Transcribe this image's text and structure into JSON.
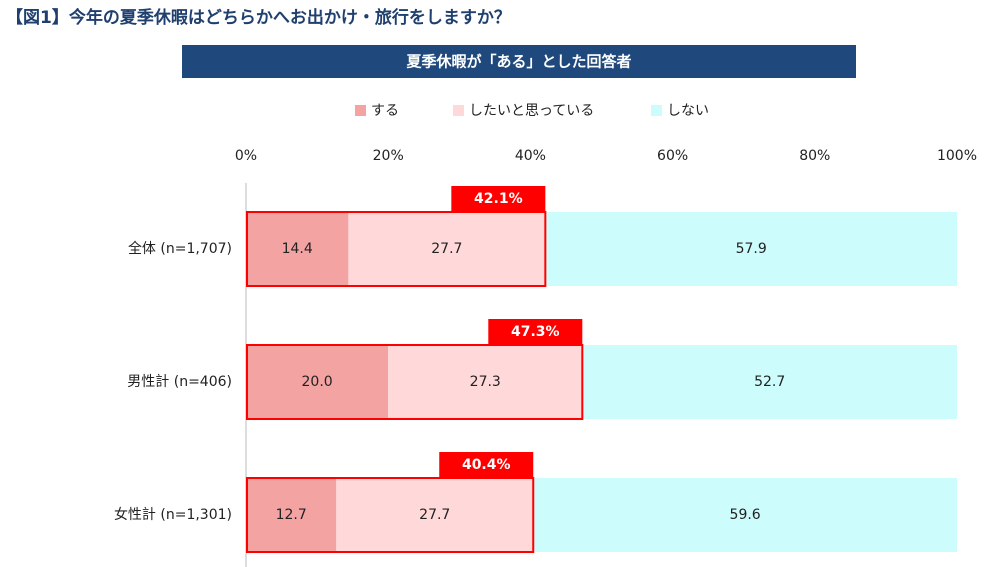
{
  "chart_data": {
    "type": "stacked-barh",
    "title": "【図1】今年の夏季休暇はどちらかへお出かけ・旅行をしますか？",
    "subtitle": "夏季休暇が「ある」とした回答者",
    "categories": [
      "全体 (n=1,707)",
      "男性計 (n=406)",
      "女性計 (n=1,301)"
    ],
    "series": [
      {
        "name": "する",
        "color": "#f4a3a3",
        "values": [
          14.4,
          20.0,
          12.7
        ],
        "value_labels": [
          "14.4",
          "20.0",
          "12.7"
        ]
      },
      {
        "name": "したいと思っている",
        "color": "#ffd9d9",
        "values": [
          27.7,
          27.3,
          27.7
        ],
        "value_labels": [
          "27.7",
          "27.3",
          "27.7"
        ]
      },
      {
        "name": "しない",
        "color": "#ccfcfc",
        "values": [
          57.9,
          52.7,
          59.6
        ],
        "value_labels": [
          "57.9",
          "52.7",
          "59.6"
        ]
      }
    ],
    "totals": {
      "color": "#ff0000",
      "values": [
        42.1,
        47.3,
        40.4
      ],
      "value_labels": [
        "42.1%",
        "47.3%",
        "40.4%"
      ]
    },
    "xlim": [
      0,
      100
    ],
    "xticks": [
      {
        "value": 0,
        "label": "0%"
      },
      {
        "value": 20,
        "label": "20%"
      },
      {
        "value": 40,
        "label": "40%"
      },
      {
        "value": 60,
        "label": "60%"
      },
      {
        "value": 80,
        "label": "80%"
      },
      {
        "value": 100,
        "label": "100%"
      }
    ],
    "legend": "top"
  }
}
